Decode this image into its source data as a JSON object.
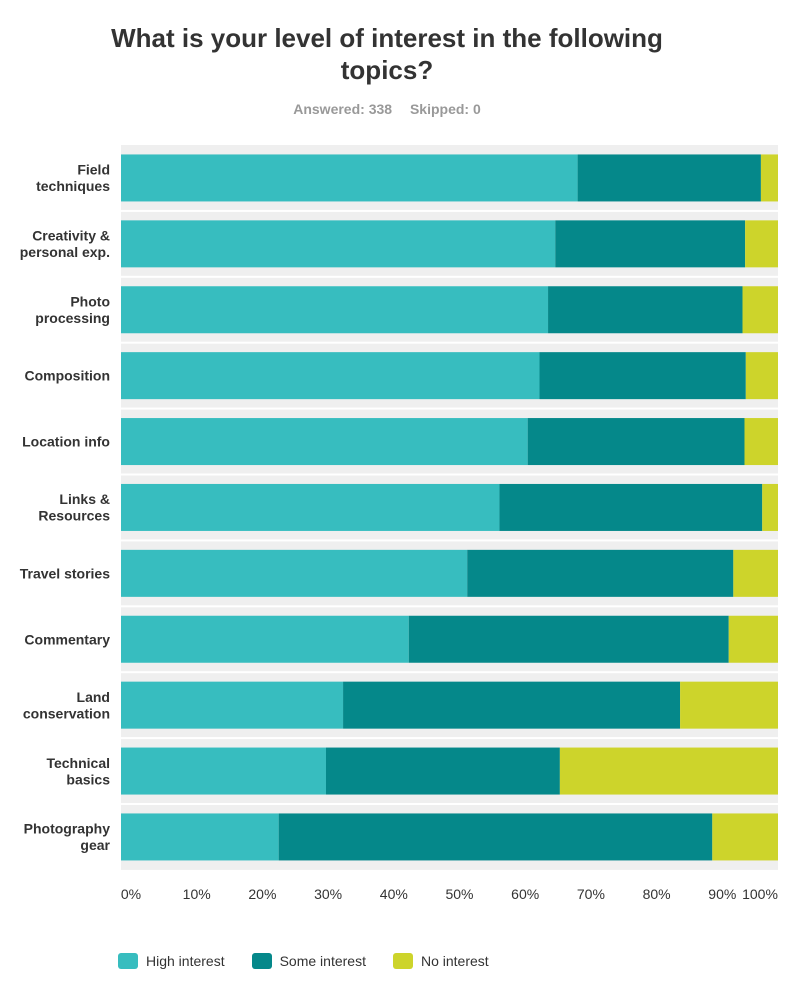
{
  "title": "What is your level of interest in the following topics?",
  "answered_label": "Answered: 338",
  "skipped_label": "Skipped: 0",
  "colors": {
    "high": "#37bdbf",
    "some": "#05888a",
    "none": "#cdd42b",
    "row_bg": "#efefef"
  },
  "legend": [
    {
      "label": "High interest",
      "color": "#37bdbf"
    },
    {
      "label": "Some interest",
      "color": "#05888a"
    },
    {
      "label": "No interest",
      "color": "#cdd42b"
    }
  ],
  "chart_data": {
    "type": "bar",
    "orientation": "horizontal",
    "stacked": true,
    "title": "What is your level of interest in the following topics?",
    "categories": [
      [
        "Field",
        "techniques"
      ],
      [
        "Creativity &",
        "personal exp."
      ],
      [
        "Photo",
        "processing"
      ],
      [
        "Composition"
      ],
      [
        "Location info"
      ],
      [
        "Links &",
        "Resources"
      ],
      [
        "Travel stories"
      ],
      [
        "Commentary"
      ],
      [
        "Land",
        "conservation"
      ],
      [
        "Technical",
        "basics"
      ],
      [
        "Photography",
        "gear"
      ]
    ],
    "series": [
      {
        "name": "High interest",
        "values": [
          69.5,
          66.1,
          65.0,
          63.7,
          61.9,
          57.6,
          52.7,
          43.8,
          33.8,
          31.2,
          24.0
        ]
      },
      {
        "name": "Some interest",
        "values": [
          27.9,
          28.9,
          29.6,
          31.4,
          33.0,
          40.0,
          40.5,
          48.7,
          51.3,
          35.6,
          66.0
        ]
      },
      {
        "name": "No interest",
        "values": [
          2.6,
          5.0,
          5.4,
          4.9,
          5.1,
          2.4,
          6.8,
          7.5,
          14.9,
          33.2,
          10.0
        ]
      }
    ],
    "xticks": [
      "0%",
      "10%",
      "20%",
      "30%",
      "40%",
      "50%",
      "60%",
      "70%",
      "80%",
      "90%",
      "100%"
    ],
    "xlim": [
      0,
      100
    ],
    "legend_position": "bottom"
  }
}
